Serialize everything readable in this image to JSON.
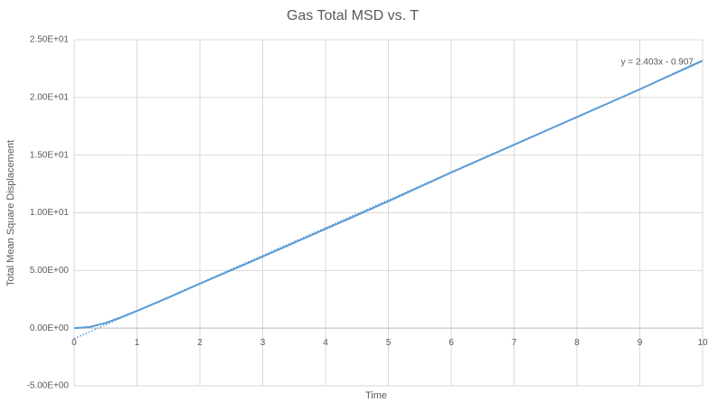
{
  "chart_data": {
    "type": "line",
    "title": "Gas Total MSD vs. T",
    "x_label": "Time",
    "y_label": "Total Mean Square Displacement",
    "x": [
      0,
      0.25,
      0.5,
      0.75,
      1,
      1.5,
      2,
      3,
      4,
      5,
      6,
      7,
      8,
      9,
      10
    ],
    "series": [
      {
        "name": "Total MSD",
        "color": "#5b9bd5",
        "values": [
          0,
          0.1,
          0.45,
          0.95,
          1.5,
          2.65,
          3.85,
          6.2,
          8.6,
          11.0,
          13.5,
          15.9,
          18.3,
          20.7,
          23.2
        ]
      }
    ],
    "trendline": {
      "label": "y = 2.403x - 0.907",
      "color": "#5b9bd5",
      "x": [
        0,
        10
      ],
      "values": [
        -0.907,
        23.123
      ]
    },
    "xlim": [
      0,
      10
    ],
    "xticks": [
      0,
      1,
      2,
      3,
      4,
      5,
      6,
      7,
      8,
      9,
      10
    ],
    "ylim": [
      -5,
      25
    ],
    "yticks": [
      {
        "value": -5,
        "label": "-5.00E+00"
      },
      {
        "value": 0,
        "label": "0.00E+00"
      },
      {
        "value": 5,
        "label": "5.00E+00"
      },
      {
        "value": 10,
        "label": "1.00E+01"
      },
      {
        "value": 15,
        "label": "1.50E+01"
      },
      {
        "value": 20,
        "label": "2.00E+01"
      },
      {
        "value": 25,
        "label": "2.50E+01"
      }
    ],
    "grid": true
  }
}
